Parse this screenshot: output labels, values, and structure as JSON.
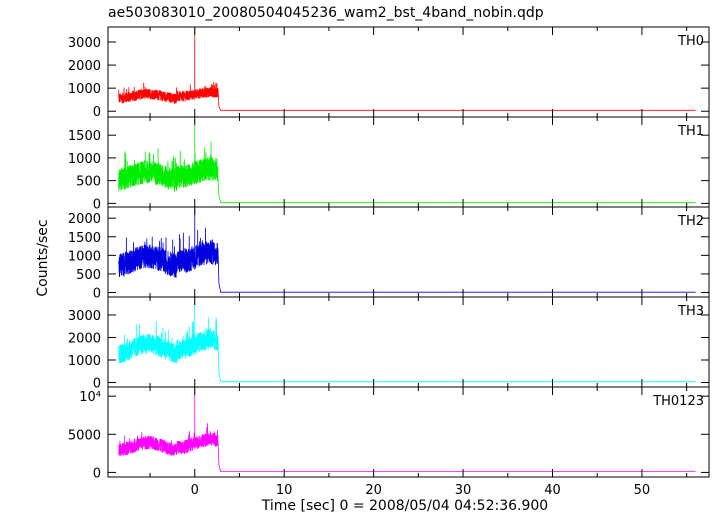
{
  "chart_data": {
    "type": "line",
    "title": "ae503083010_20080504045236_wam2_bst_4band_nobin.qdp",
    "xlabel": "Time [sec] 0 = 2008/05/04 04:52:36.900",
    "ylabel": "Counts/sec",
    "xlim": [
      -9.7,
      57.5
    ],
    "x_ticks": [
      0,
      10,
      20,
      30,
      40,
      50
    ],
    "x_tick_labels": [
      "0",
      "10",
      "20",
      "30",
      "40",
      "50"
    ],
    "burst": {
      "start": -8.5,
      "end": 2.6,
      "spike_x": 0.0,
      "data_end": 56.0
    },
    "panels": [
      {
        "label": "TH0",
        "color": "#ff0000",
        "ylim": [
          -250,
          3650
        ],
        "y_ticks": [
          0,
          1000,
          2000,
          3000
        ],
        "y_tick_labels": [
          "0",
          "1000",
          "2000",
          "3000"
        ],
        "burst_level": 650,
        "burst_spread": 230,
        "spike_peak": 3600,
        "background": 40
      },
      {
        "label": "TH1",
        "color": "#00ee00",
        "ylim": [
          -80,
          1900
        ],
        "y_ticks": [
          0,
          500,
          1000,
          1500
        ],
        "y_tick_labels": [
          "0",
          "500",
          "1000",
          "1500"
        ],
        "burst_level": 600,
        "burst_spread": 260,
        "spike_peak": 1850,
        "background": 15
      },
      {
        "label": "TH2",
        "color": "#0000e0",
        "ylim": [
          -120,
          2300
        ],
        "y_ticks": [
          0,
          500,
          1000,
          1500,
          2000
        ],
        "y_tick_labels": [
          "0",
          "500",
          "1000",
          "1500",
          "2000"
        ],
        "burst_level": 850,
        "burst_spread": 330,
        "spike_peak": 2250,
        "background": 10
      },
      {
        "label": "TH3",
        "color": "#00ffff",
        "ylim": [
          -200,
          3800
        ],
        "y_ticks": [
          0,
          1000,
          2000,
          3000
        ],
        "y_tick_labels": [
          "0",
          "1000",
          "2000",
          "3000"
        ],
        "burst_level": 1500,
        "burst_spread": 450,
        "spike_peak": 3700,
        "background": 30
      },
      {
        "label": "TH0123",
        "color": "#ff00ff",
        "ylim": [
          -600,
          11200
        ],
        "y_ticks": [
          0,
          5000,
          10000
        ],
        "y_tick_labels": [
          "0",
          "5000",
          "10⁴"
        ],
        "burst_level": 3400,
        "burst_spread": 900,
        "spike_peak": 11000,
        "background": 100
      }
    ]
  }
}
